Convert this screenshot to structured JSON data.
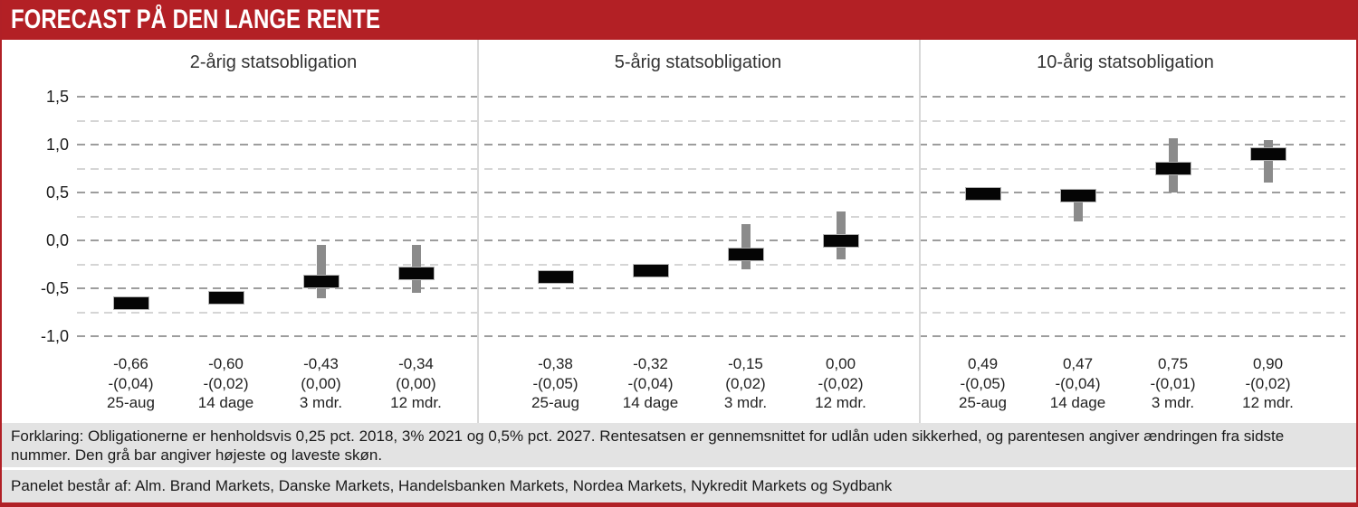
{
  "header": {
    "title": "FORECAST PÅ DEN LANGE RENTE",
    "bg_color": "#b32025",
    "text_color": "#ffffff"
  },
  "footer": {
    "line1": "Forklaring: Obligationerne er henholdsvis 0,25 pct. 2018, 3% 2021 og 0,5% pct. 2027. Rentesatsen er gennemsnittet for udlån uden sikkerhed, og parentesen angiver ændringen fra sidste nummer. Den grå bar angiver højeste og laveste skøn.",
    "line2": "Panelet består af: Alm. Brand Markets, Danske Markets, Handelsbanken Markets, Nordea Markets, Nykredit Markets og Sydbank"
  },
  "chart_data": {
    "type": "bar",
    "subtype": "forecast bars with high-low range whiskers",
    "ylim": [
      -1.0,
      1.5
    ],
    "yticks": [
      1.5,
      1.0,
      0.5,
      0.0,
      -0.5,
      -1.0
    ],
    "ytick_labels": [
      "1,5",
      "1,0",
      "0,5",
      "0,0",
      "-0,5",
      "-1,0"
    ],
    "minor_ticks": [
      1.25,
      0.75,
      0.25,
      -0.25,
      -0.75
    ],
    "grid": "horizontal dashed, major and minor",
    "legend_position": "none",
    "colors": {
      "forecast_bar": "#050505",
      "range_bar": "#8b8b8b"
    },
    "panels": [
      {
        "title": "2-årig statsobligation",
        "points": [
          {
            "period": "25-aug",
            "value": -0.66,
            "value_label": "-0,66",
            "change_label": "-(0,04)",
            "range_high": -0.66,
            "range_low": -0.66
          },
          {
            "period": "14 dage",
            "value": -0.6,
            "value_label": "-0,60",
            "change_label": "-(0,02)",
            "range_high": -0.6,
            "range_low": -0.6
          },
          {
            "period": "3 mdr.",
            "value": -0.43,
            "value_label": "-0,43",
            "change_label": "(0,00)",
            "range_high": -0.05,
            "range_low": -0.6
          },
          {
            "period": "12 mdr.",
            "value": -0.34,
            "value_label": "-0,34",
            "change_label": "(0,00)",
            "range_high": -0.05,
            "range_low": -0.55
          }
        ]
      },
      {
        "title": "5-årig statsobligation",
        "points": [
          {
            "period": "25-aug",
            "value": -0.38,
            "value_label": "-0,38",
            "change_label": "-(0,05)",
            "range_high": -0.38,
            "range_low": -0.38
          },
          {
            "period": "14 dage",
            "value": -0.32,
            "value_label": "-0,32",
            "change_label": "-(0,04)",
            "range_high": -0.32,
            "range_low": -0.32
          },
          {
            "period": "3 mdr.",
            "value": -0.15,
            "value_label": "-0,15",
            "change_label": "(0,02)",
            "range_high": 0.17,
            "range_low": -0.3
          },
          {
            "period": "12 mdr.",
            "value": 0.0,
            "value_label": "0,00",
            "change_label": "-(0,02)",
            "range_high": 0.3,
            "range_low": -0.2
          }
        ]
      },
      {
        "title": "10-årig statsobligation",
        "points": [
          {
            "period": "25-aug",
            "value": 0.49,
            "value_label": "0,49",
            "change_label": "-(0,05)",
            "range_high": 0.49,
            "range_low": 0.49
          },
          {
            "period": "14 dage",
            "value": 0.47,
            "value_label": "0,47",
            "change_label": "-(0,04)",
            "range_high": 0.5,
            "range_low": 0.2
          },
          {
            "period": "3 mdr.",
            "value": 0.75,
            "value_label": "0,75",
            "change_label": "-(0,01)",
            "range_high": 1.07,
            "range_low": 0.5
          },
          {
            "period": "12 mdr.",
            "value": 0.9,
            "value_label": "0,90",
            "change_label": "-(0,02)",
            "range_high": 1.05,
            "range_low": 0.6
          }
        ]
      }
    ]
  }
}
